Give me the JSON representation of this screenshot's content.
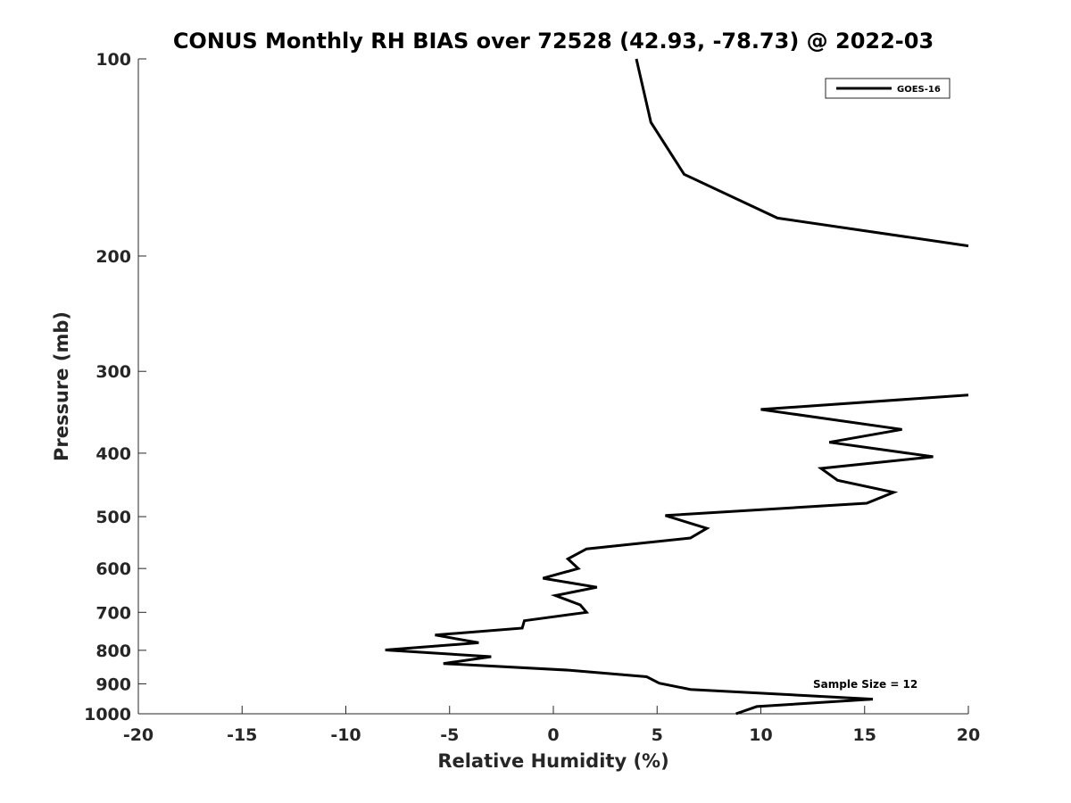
{
  "chart_data": {
    "type": "line",
    "title": "CONUS Monthly RH BIAS over 72528 (42.93, -78.73) @ 2022-03",
    "xlabel": "Relative Humidity (%)",
    "ylabel": "Pressure (mb)",
    "xlim": [
      -20,
      20
    ],
    "ylim": [
      100,
      1000
    ],
    "y_scale": "log",
    "y_direction": "reversed",
    "grid": false,
    "legend_position": "top-right",
    "x_ticks": [
      -20,
      -15,
      -10,
      -5,
      0,
      5,
      10,
      15,
      20
    ],
    "x_tick_labels": [
      "-20",
      "-15",
      "-10",
      "-5",
      "0",
      "5",
      "10",
      "15",
      "20"
    ],
    "y_ticks": [
      100,
      200,
      300,
      400,
      500,
      600,
      700,
      800,
      900,
      1000
    ],
    "y_tick_labels": [
      "100",
      "200",
      "300",
      "400",
      "500",
      "600",
      "700",
      "800",
      "900",
      "1000"
    ],
    "annotation": "Sample Size = 12",
    "color": "#000000",
    "series": [
      {
        "name": "GOES-16",
        "segments": [
          [
            [
              4.0,
              100
            ],
            [
              4.7,
              125
            ],
            [
              6.3,
              150
            ],
            [
              10.8,
              175
            ],
            [
              20.0,
              193
            ]
          ],
          [
            [
              20.0,
              326
            ],
            [
              10.0,
              343
            ],
            [
              16.8,
              368
            ],
            [
              13.3,
              385
            ],
            [
              18.3,
              405
            ],
            [
              12.9,
              422
            ],
            [
              13.7,
              440
            ],
            [
              16.4,
              459
            ],
            [
              15.1,
              477
            ],
            [
              5.4,
              498
            ],
            [
              7.4,
              521
            ],
            [
              6.6,
              539
            ],
            [
              1.6,
              560
            ],
            [
              0.7,
              580
            ],
            [
              1.2,
              600
            ],
            [
              -0.5,
              621
            ],
            [
              2.1,
              641
            ],
            [
              0.1,
              660
            ],
            [
              1.3,
              682
            ],
            [
              1.6,
              700
            ],
            [
              -1.4,
              721
            ],
            [
              -1.5,
              740
            ],
            [
              -5.7,
              758
            ],
            [
              -3.6,
              779
            ],
            [
              -8.1,
              799
            ],
            [
              -3.0,
              818
            ],
            [
              -5.3,
              838
            ],
            [
              0.8,
              858
            ],
            [
              4.5,
              878
            ],
            [
              5.1,
              898
            ],
            [
              6.6,
              918
            ],
            [
              15.4,
              950
            ],
            [
              9.8,
              975
            ],
            [
              8.8,
              1000
            ]
          ]
        ]
      }
    ]
  }
}
